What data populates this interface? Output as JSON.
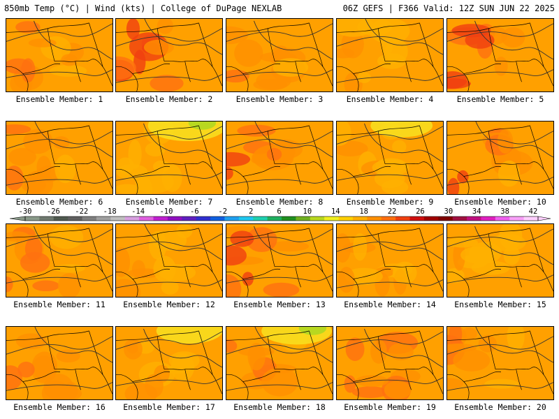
{
  "header": {
    "left": "850mb Temp (°C) | Wind (kts) | College of DuPage NEXLAB",
    "right": "06Z GEFS | F366 Valid: 12Z SUN JUN 22 2025"
  },
  "members": [
    {
      "label": "Ensemble Member: 1",
      "hot": 0.55,
      "cool": 0.0
    },
    {
      "label": "Ensemble Member: 2",
      "hot": 0.85,
      "cool": 0.0
    },
    {
      "label": "Ensemble Member: 3",
      "hot": 0.5,
      "cool": 0.0
    },
    {
      "label": "Ensemble Member: 4",
      "hot": 0.25,
      "cool": 0.0
    },
    {
      "label": "Ensemble Member: 5",
      "hot": 0.8,
      "cool": 0.0
    },
    {
      "label": "Ensemble Member: 6",
      "hot": 0.4,
      "cool": 0.0
    },
    {
      "label": "Ensemble Member: 7",
      "hot": 0.2,
      "cool": 0.9
    },
    {
      "label": "Ensemble Member: 8",
      "hot": 0.6,
      "cool": 0.0
    },
    {
      "label": "Ensemble Member: 9",
      "hot": 0.3,
      "cool": 0.5
    },
    {
      "label": "Ensemble Member: 10",
      "hot": 0.6,
      "cool": 0.0
    },
    {
      "label": "Ensemble Member: 11",
      "hot": 0.55,
      "cool": 0.0
    },
    {
      "label": "Ensemble Member: 12",
      "hot": 0.3,
      "cool": 0.0
    },
    {
      "label": "Ensemble Member: 13",
      "hot": 0.65,
      "cool": 0.0
    },
    {
      "label": "Ensemble Member: 14",
      "hot": 0.35,
      "cool": 0.0
    },
    {
      "label": "Ensemble Member: 15",
      "hot": 0.3,
      "cool": 0.0
    },
    {
      "label": "Ensemble Member: 16",
      "hot": 0.5,
      "cool": 0.0
    },
    {
      "label": "Ensemble Member: 17",
      "hot": 0.3,
      "cool": 0.6
    },
    {
      "label": "Ensemble Member: 18",
      "hot": 0.55,
      "cool": 0.7
    },
    {
      "label": "Ensemble Member: 19",
      "hot": 0.7,
      "cool": 0.0
    },
    {
      "label": "Ensemble Member: 20",
      "hot": 0.35,
      "cool": 0.0
    }
  ],
  "colorbar": {
    "ticks": [
      "-30",
      "-26",
      "-22",
      "-18",
      "-14",
      "-10",
      "-6",
      "-2",
      "2",
      "6",
      "10",
      "14",
      "18",
      "22",
      "26",
      "30",
      "34",
      "38",
      "42"
    ],
    "colors": [
      "#8a9a8a",
      "#707a70",
      "#505a50",
      "#606060",
      "#808080",
      "#a0a0a0",
      "#c0c0c0",
      "#d8a0e0",
      "#e060e0",
      "#c020d0",
      "#9010c0",
      "#6020c0",
      "#3030d0",
      "#1060e0",
      "#20a0f0",
      "#20c8f0",
      "#20d0b0",
      "#20b060",
      "#209020",
      "#70b020",
      "#b8d820",
      "#f0f020",
      "#ffd000",
      "#ffb000",
      "#ff9000",
      "#ff7010",
      "#f04010",
      "#d01010",
      "#a00000",
      "#800000",
      "#a01040",
      "#c01080",
      "#e020c0",
      "#f060f0",
      "#f8a0f8",
      "#ffd0ff"
    ]
  }
}
